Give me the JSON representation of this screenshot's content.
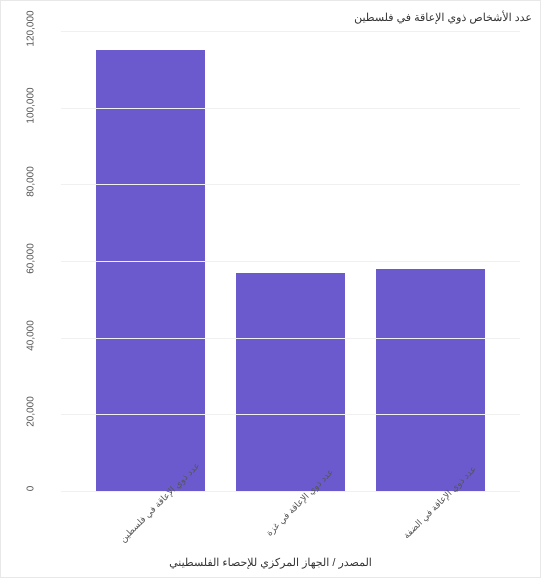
{
  "chart": {
    "type": "bar",
    "title": "عدد الأشخاص ذوي الإعاقة في فلسطين",
    "x_axis_title": "المصدر / الجهاز المركزي للإحصاء الفلسطيني",
    "categories": [
      "عدد ذوي الإعاقة في فلسطين",
      "عدد ذوي الإعاقة في غزة",
      "عدد ذوي الإعاقة في الضفة"
    ],
    "values": [
      115000,
      57000,
      58000
    ],
    "bar_color": "#6a5acd",
    "ylim": [
      0,
      120000
    ],
    "ytick_step": 20000,
    "ytick_labels": [
      "0",
      "20,000",
      "40,000",
      "60,000",
      "80,000",
      "100,000",
      "120,000"
    ],
    "background_color": "#ffffff",
    "grid_color": "#f0f0f0",
    "border_color": "#e8e8e8",
    "title_fontsize": 11,
    "label_fontsize": 10,
    "xlabel_fontsize": 9,
    "bar_width_pct": 26
  }
}
